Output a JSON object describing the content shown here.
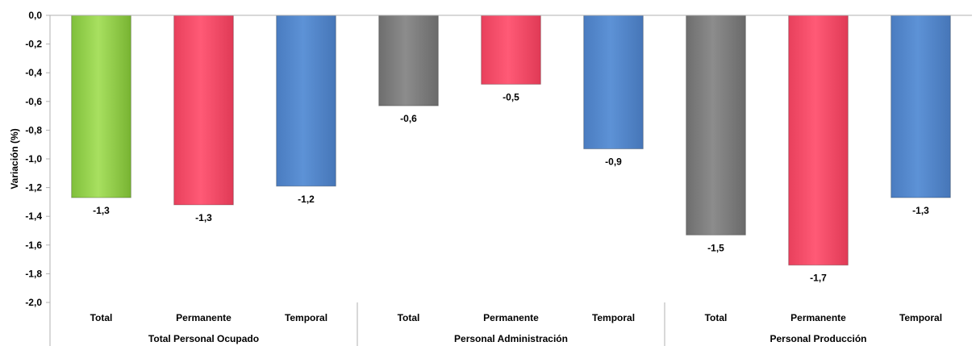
{
  "chart_data": {
    "type": "bar",
    "title": "",
    "ylabel": "Variación (%)",
    "xlabel": "",
    "ylim": [
      -2.0,
      0.0
    ],
    "y_ticks": [
      "0,0",
      "-0,2",
      "-0,4",
      "-0,6",
      "-0,8",
      "-1,0",
      "-1,2",
      "-1,4",
      "-1,6",
      "-1,8",
      "-2,0"
    ],
    "grid": false,
    "legend": "none",
    "groups": [
      {
        "name": "Total Personal Ocupado",
        "categories": [
          "Total",
          "Permanente",
          "Temporal"
        ],
        "values": [
          -1.27,
          -1.32,
          -1.19
        ],
        "labels": [
          "-1,3",
          "-1,3",
          "-1,2"
        ],
        "colors": [
          "#92d050",
          "#ff4f6e",
          "#5588cc"
        ]
      },
      {
        "name": "Personal Administración",
        "categories": [
          "Total",
          "Permanente",
          "Temporal"
        ],
        "values": [
          -0.63,
          -0.48,
          -0.93
        ],
        "labels": [
          "-0,6",
          "-0,5",
          "-0,9"
        ],
        "colors": [
          "#7f7f7f",
          "#ff4f6e",
          "#5588cc"
        ]
      },
      {
        "name": "Personal Producción",
        "categories": [
          "Total",
          "Permanente",
          "Temporal"
        ],
        "values": [
          -1.53,
          -1.74,
          -1.27
        ],
        "labels": [
          "-1,5",
          "-1,7",
          "-1,3"
        ],
        "colors": [
          "#7f7f7f",
          "#ff4f6e",
          "#5588cc"
        ]
      }
    ]
  }
}
